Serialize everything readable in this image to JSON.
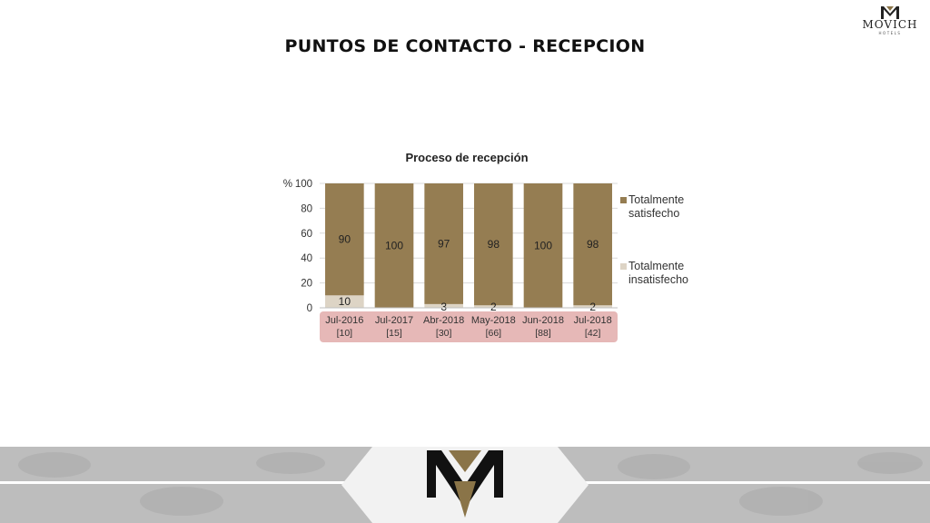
{
  "header": {
    "title": "PUNTOS DE CONTACTO - RECEPCION",
    "brand_name": "MOVICH",
    "brand_sub": "HOTELS"
  },
  "colors": {
    "satisfied": "#957d52",
    "dissatisfied": "#ddd4c5",
    "category_band": "#e6b8b7",
    "footer_gray": "#bdbdbd",
    "logo_gold": "#8a7448"
  },
  "chart_data": {
    "type": "bar",
    "stacked": true,
    "title": "Proceso de recepción",
    "y_unit_label": "%",
    "ylim": [
      0,
      100
    ],
    "yticks": [
      "0",
      "20",
      "40",
      "60",
      "80",
      "100"
    ],
    "categories": [
      "Jul-2016",
      "Jul-2017",
      "Abr-2018",
      "May-2018",
      "Jun-2018",
      "Jul-2018"
    ],
    "sample_sizes": [
      "[10]",
      "[15]",
      "[30]",
      "[66]",
      "[88]",
      "[42]"
    ],
    "series": [
      {
        "name": "Totalmente insatisfecho",
        "values": [
          10,
          0,
          3,
          2,
          0,
          2
        ],
        "labels": [
          "10",
          "",
          "3",
          "2",
          "",
          "2"
        ]
      },
      {
        "name": "Totalmente satisfecho",
        "values": [
          90,
          100,
          97,
          98,
          100,
          98
        ],
        "labels": [
          "90",
          "100",
          "97",
          "98",
          "100",
          "98"
        ]
      }
    ],
    "legend_position": "right",
    "grid": true
  }
}
